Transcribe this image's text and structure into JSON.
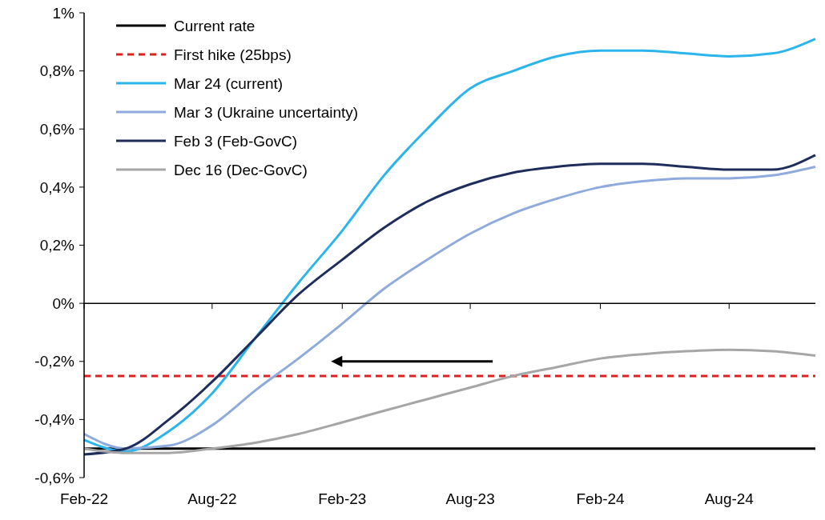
{
  "chart_data": {
    "type": "line",
    "xlim": [
      "2022-02",
      "2024-12"
    ],
    "ylim": [
      -0.6,
      1
    ],
    "xticks": [
      {
        "value": "2022-02",
        "label": "Feb-22"
      },
      {
        "value": "2022-08",
        "label": "Aug-22"
      },
      {
        "value": "2023-02",
        "label": "Feb-23"
      },
      {
        "value": "2023-08",
        "label": "Aug-23"
      },
      {
        "value": "2024-02",
        "label": "Feb-24"
      },
      {
        "value": "2024-08",
        "label": "Aug-24"
      }
    ],
    "yticks": [
      {
        "value": -0.6,
        "label": "-0,6%"
      },
      {
        "value": -0.4,
        "label": "-0,4%"
      },
      {
        "value": -0.2,
        "label": "-0,2%"
      },
      {
        "value": 0,
        "label": "0%"
      },
      {
        "value": 0.2,
        "label": "0,2%"
      },
      {
        "value": 0.4,
        "label": "0,4%"
      },
      {
        "value": 0.6,
        "label": "0,6%"
      },
      {
        "value": 0.8,
        "label": "0,8%"
      },
      {
        "value": 1,
        "label": "1%"
      }
    ],
    "legend": "top left",
    "grid": false,
    "series": [
      {
        "name": "Current rate",
        "color": "#000000",
        "x": [
          "2022-02",
          "2024-12"
        ],
        "values": [
          -0.5,
          -0.5
        ]
      },
      {
        "name": "First hike (25bps)",
        "color": "#e02020",
        "line_style": "dashed",
        "x": [
          "2022-02",
          "2024-12"
        ],
        "values": [
          -0.25,
          -0.25
        ]
      },
      {
        "name": "Mar 24 (current)",
        "color": "#2bb5ea",
        "x": [
          "2022-02",
          "2022-04",
          "2022-06",
          "2022-08",
          "2022-10",
          "2022-12",
          "2023-02",
          "2023-04",
          "2023-06",
          "2023-08",
          "2023-10",
          "2023-12",
          "2024-02",
          "2024-04",
          "2024-06",
          "2024-08",
          "2024-10",
          "2024-12"
        ],
        "values": [
          -0.47,
          -0.51,
          -0.44,
          -0.31,
          -0.12,
          0.07,
          0.25,
          0.44,
          0.6,
          0.74,
          0.8,
          0.85,
          0.87,
          0.87,
          0.86,
          0.85,
          0.86,
          0.91
        ]
      },
      {
        "name": "Mar 3 (Ukraine uncertainty)",
        "color": "#8faadc",
        "x": [
          "2022-02",
          "2022-04",
          "2022-06",
          "2022-08",
          "2022-10",
          "2022-12",
          "2023-02",
          "2023-04",
          "2023-06",
          "2023-08",
          "2023-10",
          "2023-12",
          "2024-02",
          "2024-04",
          "2024-06",
          "2024-08",
          "2024-10",
          "2024-12"
        ],
        "values": [
          -0.45,
          -0.5,
          -0.49,
          -0.42,
          -0.3,
          -0.19,
          -0.07,
          0.05,
          0.15,
          0.24,
          0.31,
          0.36,
          0.4,
          0.42,
          0.43,
          0.43,
          0.44,
          0.47
        ]
      },
      {
        "name": "Feb 3 (Feb-GovC)",
        "color": "#1f2d5c",
        "x": [
          "2022-02",
          "2022-04",
          "2022-06",
          "2022-08",
          "2022-10",
          "2022-12",
          "2023-02",
          "2023-04",
          "2023-06",
          "2023-08",
          "2023-10",
          "2023-12",
          "2024-02",
          "2024-04",
          "2024-06",
          "2024-08",
          "2024-10",
          "2024-12"
        ],
        "values": [
          -0.52,
          -0.5,
          -0.4,
          -0.27,
          -0.12,
          0.03,
          0.15,
          0.26,
          0.35,
          0.41,
          0.45,
          0.47,
          0.48,
          0.48,
          0.47,
          0.46,
          0.46,
          0.51
        ]
      },
      {
        "name": "Dec 16 (Dec-GovC)",
        "color": "#a6a6a6",
        "x": [
          "2022-02",
          "2022-04",
          "2022-06",
          "2022-08",
          "2022-10",
          "2022-12",
          "2023-02",
          "2023-04",
          "2023-06",
          "2023-08",
          "2023-10",
          "2023-12",
          "2024-02",
          "2024-04",
          "2024-06",
          "2024-08",
          "2024-10",
          "2024-12"
        ],
        "values": [
          -0.5,
          -0.515,
          -0.515,
          -0.5,
          -0.48,
          -0.45,
          -0.41,
          -0.37,
          -0.33,
          -0.29,
          -0.25,
          -0.22,
          -0.19,
          -0.175,
          -0.165,
          -0.16,
          -0.165,
          -0.18
        ]
      }
    ]
  }
}
